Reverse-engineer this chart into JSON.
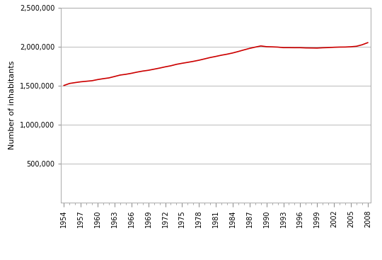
{
  "ylabel": "Number of inhabitants",
  "line_color": "#cc0000",
  "line_width": 1.2,
  "background_color": "#ffffff",
  "grid_color": "#b0b0b0",
  "ylim": [
    0,
    2500000
  ],
  "yticks": [
    500000,
    1000000,
    1500000,
    2000000,
    2500000
  ],
  "xlim": [
    1953.5,
    2008.5
  ],
  "data": {
    "1954": 1504427,
    "1955": 1530028,
    "1956": 1541187,
    "1957": 1551379,
    "1958": 1558284,
    "1959": 1565210,
    "1960": 1579838,
    "1961": 1591523,
    "1962": 1601295,
    "1963": 1619310,
    "1964": 1637827,
    "1965": 1647461,
    "1966": 1660375,
    "1967": 1675553,
    "1968": 1688793,
    "1969": 1698832,
    "1970": 1712840,
    "1971": 1727137,
    "1972": 1742980,
    "1973": 1756749,
    "1974": 1775268,
    "1975": 1788663,
    "1976": 1800696,
    "1977": 1813501,
    "1978": 1827872,
    "1979": 1845103,
    "1980": 1862546,
    "1981": 1876728,
    "1982": 1892427,
    "1983": 1905377,
    "1984": 1921023,
    "1985": 1940026,
    "1986": 1960432,
    "1987": 1979671,
    "1988": 1996025,
    "1989": 2010993,
    "1990": 2001590,
    "1991": 1999246,
    "1992": 1996234,
    "1993": 1989408,
    "1994": 1989477,
    "1995": 1988768,
    "1996": 1988948,
    "1997": 1985774,
    "1998": 1984905,
    "1999": 1983718,
    "2000": 1987755,
    "2001": 1990094,
    "2002": 1994026,
    "2003": 1996433,
    "2004": 1997012,
    "2005": 2000580,
    "2006": 2006868,
    "2007": 2025866,
    "2008": 2053000
  }
}
